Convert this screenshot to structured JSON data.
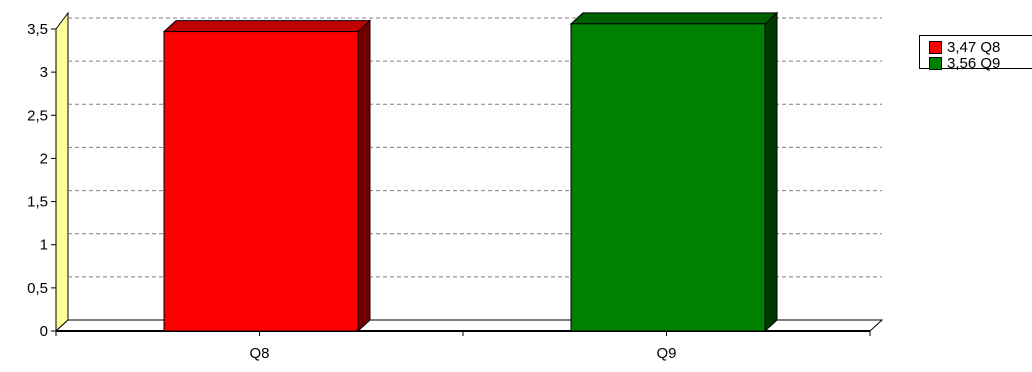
{
  "chart_data": {
    "type": "bar",
    "categories": [
      "Q8",
      "Q9"
    ],
    "values": [
      3.47,
      3.56
    ],
    "colors": [
      "#ff0000",
      "#008000"
    ],
    "ylim": [
      0,
      3.5
    ],
    "y_ticks": [
      "0",
      "0,5",
      "1",
      "1,5",
      "2",
      "2,5",
      "3",
      "3,5"
    ],
    "grid": true,
    "style": "3d",
    "legend": {
      "position": "right",
      "items": [
        {
          "label": "3,47 Q8",
          "color": "#ff0000"
        },
        {
          "label": "3,56 Q9",
          "color": "#008000"
        }
      ]
    }
  }
}
